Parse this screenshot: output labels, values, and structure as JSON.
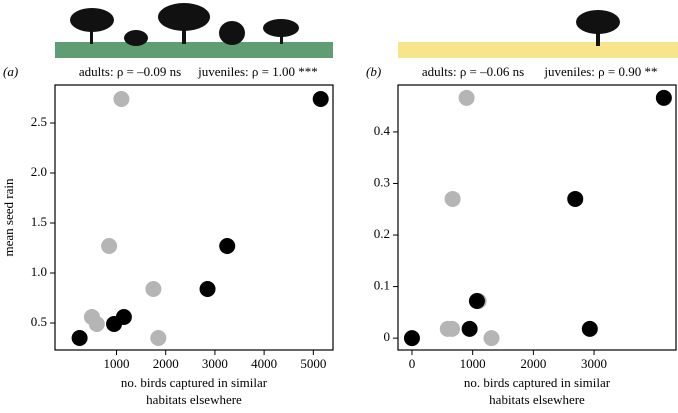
{
  "chart_data": [
    {
      "type": "scatter",
      "panel_label": "(a)",
      "ylabel": "mean seed rain",
      "xlabel": [
        "no. birds captured in similar",
        "habitats elsewhere"
      ],
      "xlim": [
        -250,
        5400
      ],
      "xticks": [
        1000,
        2000,
        3000,
        4000,
        5000
      ],
      "ylim": [
        0.23,
        2.88
      ],
      "yticks": [
        0.5,
        {
          "value": 1,
          "label": "1.0"
        },
        1.5,
        {
          "value": 2,
          "label": "2.0"
        },
        2.5
      ],
      "series": [
        {
          "name": "adults: ρ = –0.09 ns",
          "color": "#b5b5b5",
          "x": [
            1100,
            850,
            1750,
            500,
            600,
            1850
          ],
          "values": [
            2.74,
            1.27,
            0.84,
            0.56,
            0.49,
            0.35
          ]
        },
        {
          "name": "juveniles: ρ = 1.00 ***",
          "color": "#000000",
          "x": [
            250,
            950,
            1150,
            2850,
            3250,
            5150
          ],
          "values": [
            0.35,
            0.49,
            0.56,
            0.84,
            1.27,
            2.74
          ]
        }
      ]
    },
    {
      "type": "scatter",
      "panel_label": "(b)",
      "xlabel": [
        "no. birds captured in similar",
        "habitats elsewhere"
      ],
      "xlim": [
        -230,
        4350
      ],
      "xticks": [
        0,
        1000,
        2000,
        3000
      ],
      "ylim": [
        -0.023,
        0.491
      ],
      "yticks": [
        0,
        0.1,
        0.2,
        0.3,
        0.4
      ],
      "series": [
        {
          "name": "adults: ρ = –0.06 ns",
          "color": "#b5b5b5",
          "x": [
            900,
            670,
            590,
            660,
            1100,
            1310
          ],
          "values": [
            0.466,
            0.27,
            0.018,
            0.018,
            0.072,
            0
          ]
        },
        {
          "name": "juveniles: ρ = 0.90 **",
          "color": "#000000",
          "x": [
            0,
            950,
            1070,
            2930,
            2690,
            4150
          ],
          "values": [
            0,
            0.018,
            0.072,
            0.018,
            0.27,
            0.466
          ]
        }
      ]
    }
  ]
}
